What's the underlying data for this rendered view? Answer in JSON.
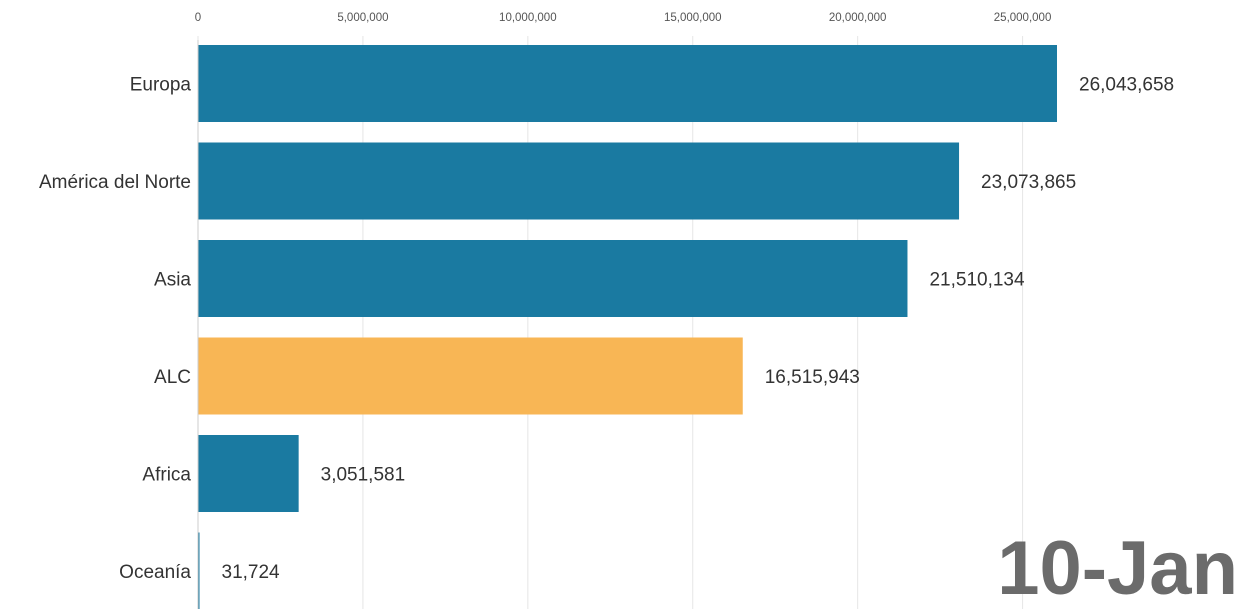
{
  "chart_data": {
    "type": "bar",
    "orientation": "horizontal",
    "categories": [
      "Europa",
      "América del Norte",
      "Asia",
      "ALC",
      "Africa",
      "Oceanía"
    ],
    "values": [
      26043658,
      23073865,
      21510134,
      16515943,
      3051581,
      31724
    ],
    "value_labels": [
      "26,043,658",
      "23,073,865",
      "21,510,134",
      "16,515,943",
      "3,051,581",
      "31,724"
    ],
    "bar_colors": [
      "#1a7aa1",
      "#1a7aa1",
      "#1a7aa1",
      "#f8b655",
      "#1a7aa1",
      "#1a7aa1"
    ],
    "xticks": [
      0,
      5000000,
      10000000,
      15000000,
      20000000,
      25000000
    ],
    "xtick_labels": [
      "0",
      "5,000,000",
      "10,000,000",
      "15,000,000",
      "20,000,000",
      "25,000,000"
    ],
    "xlim": [
      0,
      26043658
    ],
    "axis_position": "top",
    "grid": true,
    "date_label": "10-Jan"
  }
}
